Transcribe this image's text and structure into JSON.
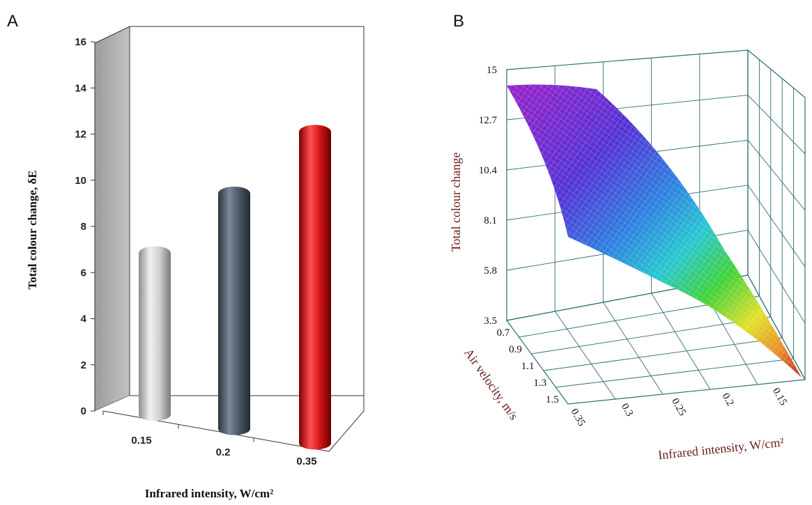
{
  "chart_data": [
    {
      "panel": "A",
      "type": "bar",
      "categories": [
        "0.15",
        "0.2",
        "0.35"
      ],
      "values": [
        7.3,
        10.5,
        13.8
      ],
      "colors": [
        "#c9c9c9",
        "#4b5868",
        "#d31515"
      ],
      "xlabel": "Infrared intensity, W/cm²",
      "ylabel": "Total colour change, δE",
      "ylim": [
        0,
        16
      ],
      "yticks": [
        "0",
        "2",
        "4",
        "6",
        "8",
        "10",
        "12",
        "14",
        "16"
      ],
      "style": "3d-cylinder"
    },
    {
      "panel": "B",
      "type": "surface",
      "xlabel": "Infrared intensity, W/cm²",
      "ylabel": "Air velocity, m/s",
      "zlabel": "Total colour change",
      "x_ticks": [
        "0.35",
        "0.3",
        "0.25",
        "0.2",
        "0.15"
      ],
      "y_ticks": [
        "0.7",
        "0.9",
        "1.1",
        "1.3",
        "1.5"
      ],
      "z_ticks": [
        "3.5",
        "5.8",
        "8.1",
        "10.4",
        "12.7",
        "15"
      ],
      "zlim": [
        3.5,
        15
      ],
      "surface_points": [
        {
          "infrared": 0.35,
          "air_velocity": 0.7,
          "colour_change": 13.8
        },
        {
          "infrared": 0.35,
          "air_velocity": 1.5,
          "colour_change": 8.5
        },
        {
          "infrared": 0.15,
          "air_velocity": 0.7,
          "colour_change": 7.2
        },
        {
          "infrared": 0.15,
          "air_velocity": 1.5,
          "colour_change": 4.0
        }
      ],
      "colormap": "rainbow (violet high → red low)"
    }
  ]
}
